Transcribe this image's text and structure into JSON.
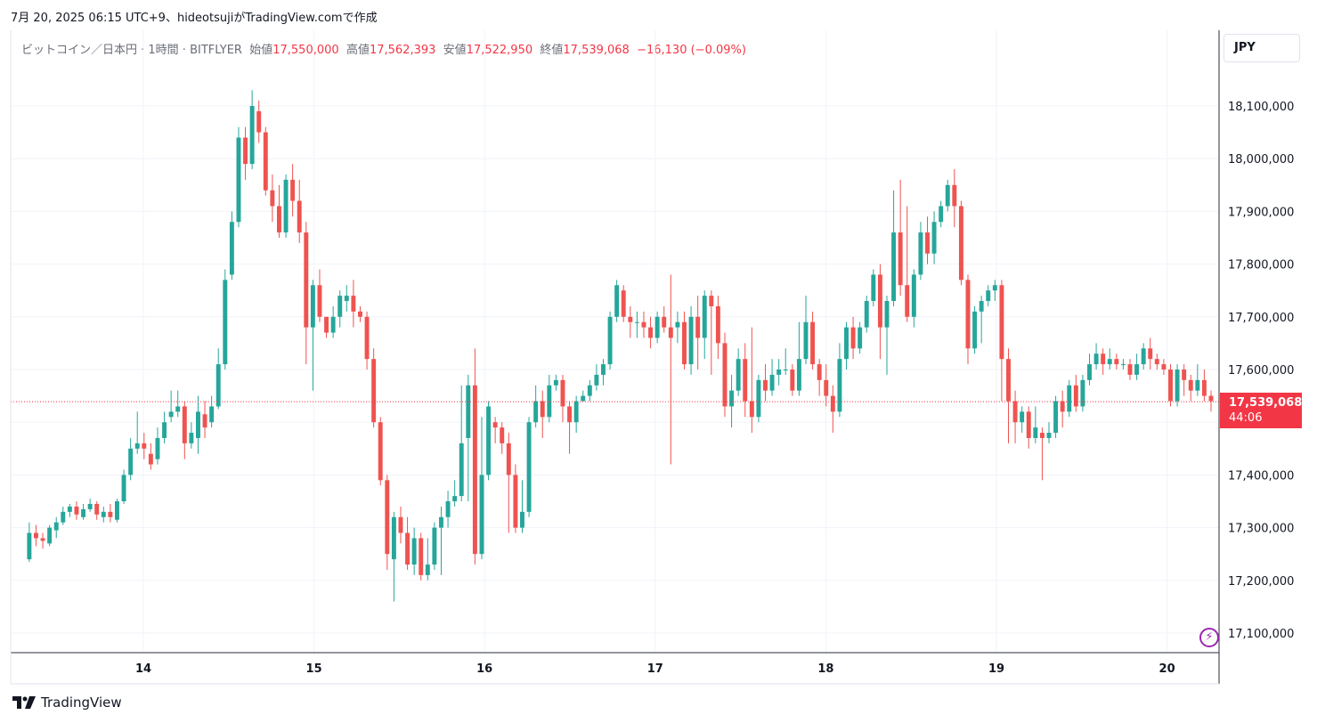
{
  "caption": "7月 20, 2025 06:15 UTC+9、hideotsujiがTradingView.comで作成",
  "legend": {
    "symbol": "ビットコイン／日本円 · 1時間 · BITFLYER",
    "open_label": "始値",
    "open": "17,550,000",
    "high_label": "高値",
    "high": "17,562,393",
    "low_label": "安値",
    "low": "17,522,950",
    "close_label": "終値",
    "close": "17,539,068",
    "change": "−16,130 (−0.09%)"
  },
  "currency_button": "JPY",
  "last_price": {
    "value": "17,539,068",
    "countdown": "44:06"
  },
  "brand": "TradingView",
  "colors": {
    "up": "#26a69a",
    "down": "#ef5350",
    "last_price": "#f23645",
    "grid": "#f0f3fa",
    "alert": "#9c27b0"
  },
  "icons": {
    "alert": "lightning-icon",
    "logo": "tradingview-logo-icon"
  },
  "chart_data": {
    "type": "candlestick",
    "interval": "1h",
    "y_axis": {
      "ticks": [
        17100000,
        17200000,
        17300000,
        17400000,
        17500000,
        17600000,
        17700000,
        17800000,
        17900000,
        18000000,
        18100000
      ],
      "tick_labels": [
        "17,100,000",
        "17,200,000",
        "17,300,000",
        "17,400,000",
        "17,500,000",
        "17,600,000",
        "17,700,000",
        "17,800,000",
        "17,900,000",
        "18,000,000",
        "18,100,000"
      ],
      "ylim": [
        17060000,
        18200000
      ],
      "position": "right"
    },
    "x_axis": {
      "tick_labels": [
        "14",
        "15",
        "16",
        "17",
        "18",
        "19",
        "20"
      ],
      "start_day": 13.3,
      "end_day": 20.3
    },
    "grid": true,
    "last_price_line": 17539068,
    "candles": [
      [
        17240000,
        17290000,
        17235000,
        17310000
      ],
      [
        17290000,
        17280000,
        17265000,
        17305000
      ],
      [
        17280000,
        17275000,
        17260000,
        17290000
      ],
      [
        17270000,
        17300000,
        17265000,
        17305000
      ],
      [
        17295000,
        17310000,
        17280000,
        17320000
      ],
      [
        17310000,
        17330000,
        17305000,
        17340000
      ],
      [
        17330000,
        17340000,
        17320000,
        17345000
      ],
      [
        17340000,
        17325000,
        17315000,
        17350000
      ],
      [
        17320000,
        17335000,
        17315000,
        17345000
      ],
      [
        17335000,
        17345000,
        17330000,
        17355000
      ],
      [
        17345000,
        17325000,
        17315000,
        17350000
      ],
      [
        17320000,
        17330000,
        17310000,
        17340000
      ],
      [
        17330000,
        17320000,
        17310000,
        17345000
      ],
      [
        17315000,
        17350000,
        17310000,
        17355000
      ],
      [
        17350000,
        17400000,
        17345000,
        17410000
      ],
      [
        17400000,
        17450000,
        17390000,
        17470000
      ],
      [
        17450000,
        17460000,
        17440000,
        17520000
      ],
      [
        17460000,
        17450000,
        17430000,
        17480000
      ],
      [
        17440000,
        17420000,
        17410000,
        17460000
      ],
      [
        17430000,
        17470000,
        17420000,
        17490000
      ],
      [
        17470000,
        17500000,
        17460000,
        17520000
      ],
      [
        17510000,
        17520000,
        17500000,
        17560000
      ],
      [
        17520000,
        17530000,
        17510000,
        17560000
      ],
      [
        17530000,
        17460000,
        17430000,
        17540000
      ],
      [
        17460000,
        17480000,
        17450000,
        17500000
      ],
      [
        17470000,
        17520000,
        17440000,
        17550000
      ],
      [
        17515000,
        17490000,
        17470000,
        17540000
      ],
      [
        17500000,
        17530000,
        17490000,
        17550000
      ],
      [
        17530000,
        17610000,
        17525000,
        17640000
      ],
      [
        17610000,
        17770000,
        17600000,
        17790000
      ],
      [
        17780000,
        17880000,
        17770000,
        17900000
      ],
      [
        17880000,
        18040000,
        17870000,
        18060000
      ],
      [
        18040000,
        17990000,
        17960000,
        18060000
      ],
      [
        17990000,
        18100000,
        17980000,
        18130000
      ],
      [
        18090000,
        18050000,
        18030000,
        18110000
      ],
      [
        18050000,
        17940000,
        17930000,
        18060000
      ],
      [
        17940000,
        17910000,
        17880000,
        17970000
      ],
      [
        17910000,
        17860000,
        17850000,
        17950000
      ],
      [
        17860000,
        17960000,
        17850000,
        17970000
      ],
      [
        17960000,
        17920000,
        17890000,
        17990000
      ],
      [
        17920000,
        17860000,
        17840000,
        17960000
      ],
      [
        17860000,
        17680000,
        17610000,
        17880000
      ],
      [
        17680000,
        17760000,
        17560000,
        17770000
      ],
      [
        17760000,
        17700000,
        17690000,
        17790000
      ],
      [
        17700000,
        17670000,
        17660000,
        17700000
      ],
      [
        17670000,
        17700000,
        17660000,
        17720000
      ],
      [
        17700000,
        17740000,
        17680000,
        17750000
      ],
      [
        17730000,
        17740000,
        17710000,
        17760000
      ],
      [
        17740000,
        17710000,
        17680000,
        17770000
      ],
      [
        17710000,
        17700000,
        17690000,
        17720000
      ],
      [
        17700000,
        17620000,
        17600000,
        17710000
      ],
      [
        17620000,
        17500000,
        17490000,
        17640000
      ],
      [
        17500000,
        17390000,
        17380000,
        17510000
      ],
      [
        17390000,
        17250000,
        17220000,
        17400000
      ],
      [
        17240000,
        17320000,
        17160000,
        17330000
      ],
      [
        17320000,
        17290000,
        17270000,
        17340000
      ],
      [
        17290000,
        17230000,
        17220000,
        17320000
      ],
      [
        17230000,
        17280000,
        17210000,
        17300000
      ],
      [
        17280000,
        17210000,
        17200000,
        17290000
      ],
      [
        17210000,
        17230000,
        17200000,
        17280000
      ],
      [
        17230000,
        17300000,
        17220000,
        17310000
      ],
      [
        17300000,
        17320000,
        17210000,
        17340000
      ],
      [
        17320000,
        17350000,
        17300000,
        17370000
      ],
      [
        17350000,
        17360000,
        17340000,
        17390000
      ],
      [
        17360000,
        17460000,
        17350000,
        17570000
      ],
      [
        17470000,
        17570000,
        17350000,
        17590000
      ],
      [
        17570000,
        17250000,
        17230000,
        17640000
      ],
      [
        17250000,
        17400000,
        17240000,
        17510000
      ],
      [
        17400000,
        17530000,
        17390000,
        17540000
      ],
      [
        17500000,
        17490000,
        17460000,
        17510000
      ],
      [
        17490000,
        17460000,
        17440000,
        17500000
      ],
      [
        17460000,
        17400000,
        17290000,
        17480000
      ],
      [
        17400000,
        17300000,
        17290000,
        17420000
      ],
      [
        17300000,
        17330000,
        17290000,
        17390000
      ],
      [
        17330000,
        17500000,
        17320000,
        17510000
      ],
      [
        17500000,
        17540000,
        17490000,
        17570000
      ],
      [
        17540000,
        17510000,
        17470000,
        17560000
      ],
      [
        17510000,
        17570000,
        17500000,
        17590000
      ],
      [
        17570000,
        17580000,
        17560000,
        17590000
      ],
      [
        17580000,
        17530000,
        17500000,
        17590000
      ],
      [
        17530000,
        17500000,
        17440000,
        17540000
      ],
      [
        17500000,
        17540000,
        17480000,
        17550000
      ],
      [
        17540000,
        17550000,
        17540000,
        17560000
      ],
      [
        17550000,
        17570000,
        17540000,
        17580000
      ],
      [
        17570000,
        17590000,
        17560000,
        17610000
      ],
      [
        17590000,
        17610000,
        17570000,
        17620000
      ],
      [
        17610000,
        17700000,
        17600000,
        17710000
      ],
      [
        17700000,
        17760000,
        17690000,
        17770000
      ],
      [
        17750000,
        17700000,
        17690000,
        17760000
      ],
      [
        17700000,
        17690000,
        17660000,
        17720000
      ],
      [
        17690000,
        17690000,
        17660000,
        17710000
      ],
      [
        17690000,
        17680000,
        17660000,
        17710000
      ],
      [
        17680000,
        17660000,
        17640000,
        17700000
      ],
      [
        17660000,
        17700000,
        17650000,
        17710000
      ],
      [
        17700000,
        17680000,
        17670000,
        17720000
      ],
      [
        17680000,
        17660000,
        17420000,
        17780000
      ],
      [
        17680000,
        17690000,
        17650000,
        17710000
      ],
      [
        17690000,
        17610000,
        17600000,
        17710000
      ],
      [
        17610000,
        17700000,
        17590000,
        17720000
      ],
      [
        17700000,
        17660000,
        17600000,
        17740000
      ],
      [
        17660000,
        17740000,
        17620000,
        17750000
      ],
      [
        17740000,
        17720000,
        17590000,
        17750000
      ],
      [
        17720000,
        17650000,
        17620000,
        17740000
      ],
      [
        17650000,
        17530000,
        17510000,
        17670000
      ],
      [
        17530000,
        17560000,
        17490000,
        17590000
      ],
      [
        17560000,
        17620000,
        17550000,
        17640000
      ],
      [
        17620000,
        17540000,
        17510000,
        17650000
      ],
      [
        17540000,
        17510000,
        17480000,
        17680000
      ],
      [
        17510000,
        17580000,
        17500000,
        17590000
      ],
      [
        17580000,
        17560000,
        17540000,
        17610000
      ],
      [
        17560000,
        17590000,
        17550000,
        17620000
      ],
      [
        17590000,
        17600000,
        17570000,
        17620000
      ],
      [
        17600000,
        17600000,
        17590000,
        17640000
      ],
      [
        17600000,
        17560000,
        17550000,
        17610000
      ],
      [
        17560000,
        17620000,
        17550000,
        17690000
      ],
      [
        17620000,
        17690000,
        17610000,
        17740000
      ],
      [
        17690000,
        17610000,
        17600000,
        17710000
      ],
      [
        17610000,
        17580000,
        17550000,
        17620000
      ],
      [
        17580000,
        17550000,
        17530000,
        17610000
      ],
      [
        17550000,
        17520000,
        17480000,
        17570000
      ],
      [
        17520000,
        17620000,
        17510000,
        17650000
      ],
      [
        17620000,
        17680000,
        17600000,
        17690000
      ],
      [
        17680000,
        17640000,
        17620000,
        17700000
      ],
      [
        17640000,
        17680000,
        17630000,
        17690000
      ],
      [
        17680000,
        17730000,
        17670000,
        17740000
      ],
      [
        17730000,
        17780000,
        17720000,
        17790000
      ],
      [
        17780000,
        17680000,
        17620000,
        17800000
      ],
      [
        17680000,
        17730000,
        17590000,
        17740000
      ],
      [
        17730000,
        17860000,
        17720000,
        17940000
      ],
      [
        17860000,
        17760000,
        17740000,
        17960000
      ],
      [
        17760000,
        17700000,
        17690000,
        17910000
      ],
      [
        17700000,
        17780000,
        17680000,
        17790000
      ],
      [
        17780000,
        17860000,
        17770000,
        17880000
      ],
      [
        17860000,
        17820000,
        17800000,
        17890000
      ],
      [
        17820000,
        17880000,
        17800000,
        17900000
      ],
      [
        17880000,
        17910000,
        17870000,
        17920000
      ],
      [
        17910000,
        17950000,
        17900000,
        17960000
      ],
      [
        17950000,
        17910000,
        17870000,
        17980000
      ],
      [
        17910000,
        17770000,
        17760000,
        17920000
      ],
      [
        17770000,
        17640000,
        17610000,
        17780000
      ],
      [
        17640000,
        17710000,
        17630000,
        17720000
      ],
      [
        17710000,
        17730000,
        17650000,
        17740000
      ],
      [
        17730000,
        17750000,
        17720000,
        17760000
      ],
      [
        17750000,
        17760000,
        17730000,
        17770000
      ],
      [
        17760000,
        17620000,
        17540000,
        17770000
      ],
      [
        17620000,
        17540000,
        17460000,
        17640000
      ],
      [
        17540000,
        17500000,
        17460000,
        17560000
      ],
      [
        17500000,
        17520000,
        17480000,
        17530000
      ],
      [
        17520000,
        17470000,
        17450000,
        17530000
      ],
      [
        17470000,
        17490000,
        17460000,
        17530000
      ],
      [
        17480000,
        17470000,
        17390000,
        17490000
      ],
      [
        17470000,
        17480000,
        17460000,
        17500000
      ],
      [
        17480000,
        17540000,
        17470000,
        17550000
      ],
      [
        17540000,
        17520000,
        17490000,
        17560000
      ],
      [
        17520000,
        17570000,
        17510000,
        17580000
      ],
      [
        17570000,
        17530000,
        17520000,
        17590000
      ],
      [
        17530000,
        17580000,
        17520000,
        17590000
      ],
      [
        17580000,
        17610000,
        17570000,
        17630000
      ],
      [
        17610000,
        17630000,
        17600000,
        17650000
      ],
      [
        17630000,
        17610000,
        17590000,
        17640000
      ],
      [
        17610000,
        17620000,
        17600000,
        17640000
      ],
      [
        17620000,
        17610000,
        17600000,
        17630000
      ],
      [
        17610000,
        17610000,
        17600000,
        17620000
      ],
      [
        17610000,
        17590000,
        17580000,
        17620000
      ],
      [
        17590000,
        17610000,
        17580000,
        17630000
      ],
      [
        17610000,
        17640000,
        17600000,
        17650000
      ],
      [
        17640000,
        17620000,
        17600000,
        17660000
      ],
      [
        17620000,
        17610000,
        17600000,
        17630000
      ],
      [
        17610000,
        17600000,
        17590000,
        17620000
      ],
      [
        17600000,
        17540000,
        17530000,
        17610000
      ],
      [
        17540000,
        17600000,
        17530000,
        17610000
      ],
      [
        17600000,
        17580000,
        17550000,
        17610000
      ],
      [
        17580000,
        17560000,
        17540000,
        17590000
      ],
      [
        17560000,
        17580000,
        17550000,
        17610000
      ],
      [
        17580000,
        17550000,
        17540000,
        17600000
      ],
      [
        17550000,
        17540000,
        17520000,
        17560000
      ]
    ]
  }
}
